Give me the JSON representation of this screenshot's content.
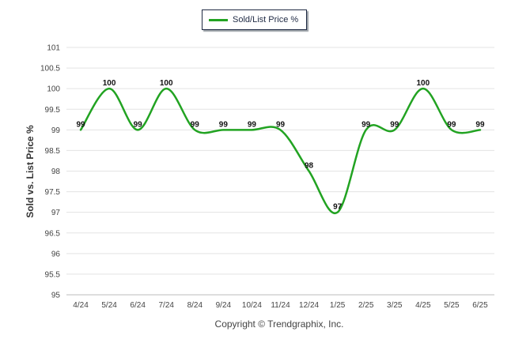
{
  "legend": {
    "label": "Sold/List Price %",
    "color": "#22a322"
  },
  "footer": {
    "copyright": "Copyright © Trendgraphix, Inc."
  },
  "chart_data": {
    "type": "line",
    "title": "",
    "xlabel": "",
    "ylabel": "Sold vs. List Price %",
    "ylim": [
      95,
      101
    ],
    "y_ticks": [
      "95",
      "95.5",
      "96",
      "96.5",
      "97",
      "97.5",
      "98",
      "98.5",
      "99",
      "99.5",
      "100",
      "100.5",
      "101"
    ],
    "categories": [
      "4/24",
      "5/24",
      "6/24",
      "7/24",
      "8/24",
      "9/24",
      "10/24",
      "11/24",
      "12/24",
      "1/25",
      "2/25",
      "3/25",
      "4/25",
      "5/25",
      "6/25"
    ],
    "series": [
      {
        "name": "Sold/List Price %",
        "color": "#22a322",
        "values": [
          99,
          100,
          99,
          100,
          99,
          99,
          99,
          99,
          98,
          97,
          99,
          99,
          100,
          99,
          99
        ],
        "labels": [
          "99",
          "100",
          "99",
          "100",
          "99",
          "99",
          "99",
          "99",
          "98",
          "97",
          "99",
          "99",
          "100",
          "99",
          "99"
        ]
      }
    ],
    "grid": true,
    "legend_position": "top-center"
  }
}
